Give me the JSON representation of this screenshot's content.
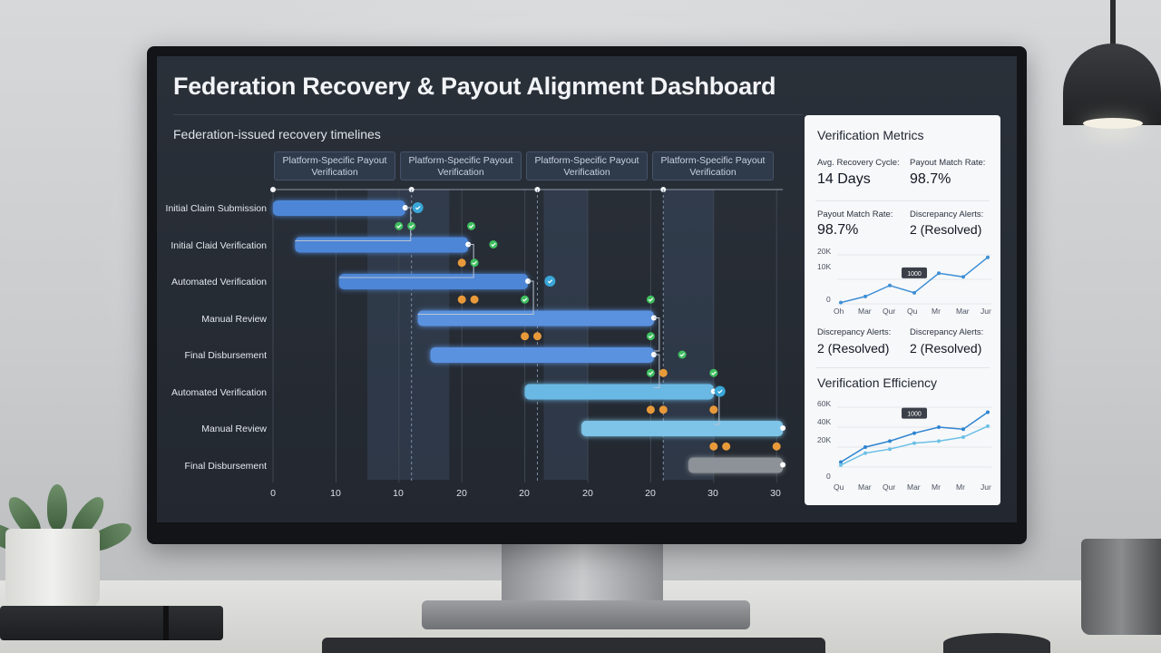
{
  "dashboard": {
    "title": "Federation Recovery & Payout Alignment Dashboard",
    "timeline_title": "Federation-issued recovery timelines"
  },
  "phases": [
    "Platform-Specific Payout Verification",
    "Platform-Specific Payout Verification",
    "Platform-Specific Payout Verification",
    "Platform-Specific Payout Verification"
  ],
  "rows": [
    "Initial Claim Submission",
    "Initial Claid Verification",
    "Automated Verification",
    "Manual Review",
    "Final Disbursement",
    "Automated Verification",
    "Manual Review",
    "Final Disbursement"
  ],
  "x_ticks": [
    "0",
    "10",
    "10",
    "20",
    "20",
    "20",
    "20",
    "30",
    "30"
  ],
  "chart_data": [
    {
      "type": "gantt",
      "title": "Federation-issued recovery timelines",
      "categories": [
        "Initial Claim Submission",
        "Initial Claid Verification",
        "Automated Verification",
        "Manual Review",
        "Final Disbursement",
        "Automated Verification",
        "Manual Review",
        "Final Disbursement"
      ],
      "x_tick_labels": [
        "0",
        "10",
        "10",
        "20",
        "20",
        "20",
        "20",
        "30",
        "30"
      ],
      "bars": [
        {
          "start": 0,
          "end": 2.1,
          "color": "#4d86d6"
        },
        {
          "start": 0.35,
          "end": 3.1,
          "color": "#4d86d6"
        },
        {
          "start": 1.05,
          "end": 4.05,
          "color": "#4d86d6"
        },
        {
          "start": 2.3,
          "end": 6.05,
          "color": "#5a92df"
        },
        {
          "start": 2.5,
          "end": 6.05,
          "color": "#5a92df"
        },
        {
          "start": 4.0,
          "end": 7.0,
          "color": "#6ab8e4"
        },
        {
          "start": 4.9,
          "end": 8.1,
          "color": "#7dc4e8"
        },
        {
          "start": 6.6,
          "end": 8.1,
          "color": "#8d9298"
        }
      ],
      "status_colors": {
        "ok": "#3fbf5f",
        "pending": "#e89a3a",
        "done": "#3aa6d8"
      }
    },
    {
      "type": "line",
      "title": "",
      "categories": [
        "Oh",
        "Mar",
        "Qur",
        "Qu",
        "Mr",
        "Mar",
        "Jur"
      ],
      "y_tick_labels": [
        "0",
        "10K",
        "20K"
      ],
      "ylim": [
        0,
        20000
      ],
      "series": [
        {
          "values": [
            500,
            3000,
            7500,
            4500,
            12500,
            11000,
            19000
          ],
          "color": "#3e8fd6"
        }
      ],
      "annotation": "1000"
    },
    {
      "type": "line",
      "title": "Verification Efficiency",
      "categories": [
        "Qu",
        "Mar",
        "Qur",
        "Mar",
        "Mr",
        "Mr",
        "Jur"
      ],
      "y_tick_labels": [
        "0",
        "20K",
        "40K",
        "60K"
      ],
      "ylim": [
        0,
        60000
      ],
      "series": [
        {
          "values": [
            5000,
            20000,
            26000,
            34000,
            40000,
            38000,
            55000
          ],
          "color": "#2f84d0"
        },
        {
          "values": [
            2000,
            14000,
            18000,
            24000,
            26000,
            30000,
            41000
          ],
          "color": "#6cc0e6"
        }
      ],
      "annotation": "1000"
    }
  ],
  "metrics": {
    "header": "Verification Metrics",
    "avg_cycle_label": "Avg. Recovery Cycle:",
    "avg_cycle_value": "14 Days",
    "match_rate_label": "Payout Match Rate:",
    "match_rate_value": "98.7%",
    "match_rate_label_2": "Payout Match Rate:",
    "match_rate_value_2": "98.7%",
    "discrepancy_label": "Discrepancy Alerts:",
    "discrepancy_value": "2 (Resolved)",
    "discrepancy_label_2": "Discrepancy Alerts:",
    "discrepancy_value_2": "2 (Resolved)",
    "discrepancy_label_3": "Discrepancy Alerts:",
    "discrepancy_value_3": "2 (Resolved)",
    "efficiency_header": "Verification Efficiency"
  },
  "colors": {
    "accent": "#4d86d6",
    "ok": "#3fbf5f",
    "pending": "#e89a3a",
    "screen_bg": "#262b33"
  }
}
